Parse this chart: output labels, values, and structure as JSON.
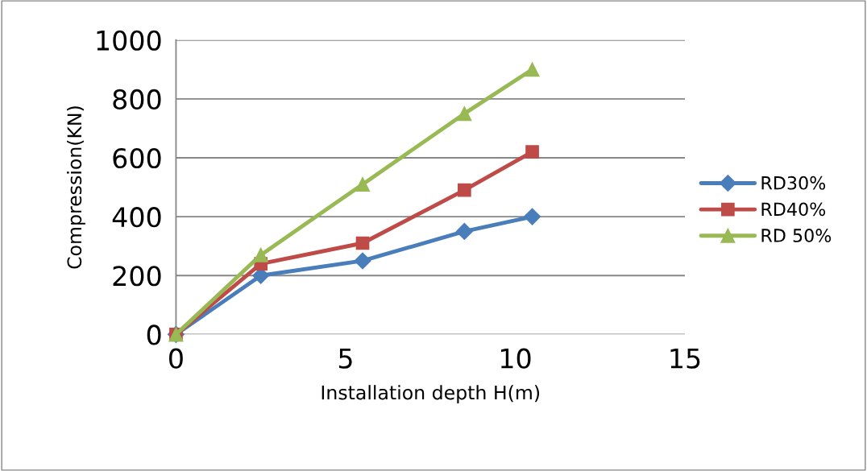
{
  "chart_data": {
    "type": "line",
    "xlabel": "Installation depth H(m)",
    "ylabel": "Compression(KN)",
    "x": [
      0,
      2.5,
      5.5,
      8.5,
      10.5
    ],
    "series": [
      {
        "name": "RD30%",
        "color": "#4a7ebb",
        "marker": "diamond",
        "values": [
          0,
          200,
          250,
          350,
          400
        ]
      },
      {
        "name": "RD40%",
        "color": "#be4b48",
        "marker": "square",
        "values": [
          0,
          240,
          310,
          490,
          620
        ]
      },
      {
        "name": "RD 50%",
        "color": "#98b954",
        "marker": "triangle",
        "values": [
          0,
          270,
          510,
          750,
          900
        ]
      }
    ],
    "xlim": [
      0,
      15
    ],
    "xticks": [
      0,
      5,
      10,
      15
    ],
    "ylim": [
      0,
      1000
    ],
    "yticks": [
      0,
      200,
      400,
      600,
      800,
      1000
    ],
    "grid": "y",
    "legend": "right"
  }
}
